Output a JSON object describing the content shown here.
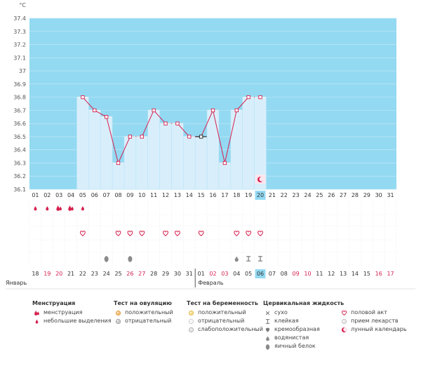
{
  "chart_data": {
    "type": "line",
    "yunit": "°C",
    "ylim": [
      36.1,
      37.4
    ],
    "yticks": [
      "36.1",
      "36.2",
      "36.3",
      "36.4",
      "36.5",
      "36.6",
      "36.7",
      "36.8",
      "36.9",
      "37",
      "37.1",
      "37.2",
      "37.3",
      "37.4"
    ],
    "x": [
      "01",
      "02",
      "03",
      "04",
      "05",
      "06",
      "07",
      "08",
      "09",
      "10",
      "11",
      "12",
      "13",
      "14",
      "15",
      "16",
      "17",
      "18",
      "19",
      "20",
      "21",
      "22",
      "23",
      "24",
      "25",
      "26",
      "27",
      "28",
      "29",
      "30",
      "31"
    ],
    "selected_day": "20",
    "temperatures": [
      null,
      null,
      null,
      null,
      36.8,
      36.7,
      36.65,
      36.3,
      36.5,
      36.5,
      36.7,
      36.6,
      36.6,
      36.5,
      36.5,
      36.7,
      36.3,
      36.7,
      36.8,
      36.8,
      null,
      null,
      null,
      null,
      null,
      null,
      null,
      null,
      null,
      null,
      null
    ],
    "dates": [
      "18",
      "19",
      "20",
      "21",
      "22",
      "23",
      "24",
      "25",
      "26",
      "27",
      "28",
      "29",
      "30",
      "31",
      "01",
      "02",
      "03",
      "04",
      "05",
      "06",
      "07",
      "08",
      "09",
      "10",
      "11",
      "12",
      "13",
      "14",
      "15",
      "16",
      "17"
    ],
    "date_colors": [
      "#333333",
      "#d6204e",
      "#d6204e",
      "#333333",
      "#333333",
      "#333333",
      "#333333",
      "#333333",
      "#d6204e",
      "#d6204e",
      "#333333",
      "#333333",
      "#333333",
      "#333333",
      "#333333",
      "#d6204e",
      "#d6204e",
      "#333333",
      "#333333",
      "#333333",
      "#333333",
      "#333333",
      "#d6204e",
      "#d6204e",
      "#333333",
      "#333333",
      "#333333",
      "#333333",
      "#333333",
      "#d6204e",
      "#d6204e"
    ],
    "month_labels": [
      {
        "label": "Январь",
        "day_index": 0
      },
      {
        "label": "Февраль",
        "day_index": 14
      }
    ],
    "menstruation": [
      "spotting",
      "spotting",
      "menstruation",
      "menstruation",
      "spotting",
      null,
      null,
      null,
      null,
      null,
      null,
      null,
      null,
      null,
      null,
      null,
      null,
      null,
      null,
      null,
      null,
      null,
      null,
      null,
      null,
      null,
      null,
      null,
      null,
      null,
      null
    ],
    "intercourse_days": [
      "05",
      "08",
      "09",
      "10",
      "12",
      "13",
      "15",
      "18",
      "19",
      "20"
    ],
    "cervical_fluid": [
      null,
      null,
      null,
      null,
      null,
      null,
      "egg_white",
      null,
      "egg_white",
      null,
      null,
      null,
      null,
      null,
      null,
      null,
      null,
      "watery",
      "sticky",
      "sticky",
      null,
      null,
      null,
      null,
      null,
      null,
      null,
      null,
      null,
      null,
      null
    ],
    "lunar_marker_day": "20"
  },
  "legend": {
    "groups": [
      {
        "title": "Менструация",
        "items": [
          {
            "icon": "menstruation-drop-icon",
            "label": "менструация"
          },
          {
            "icon": "spotting-drop-icon",
            "label": "небольшие выделения"
          }
        ]
      },
      {
        "title": "Тест на овуляцию",
        "items": [
          {
            "icon": "ovulation-positive-icon",
            "label": "положительный"
          },
          {
            "icon": "ovulation-negative-icon",
            "label": "отрицательный"
          }
        ]
      },
      {
        "title": "Тест на беременность",
        "items": [
          {
            "icon": "pregnancy-positive-icon",
            "label": "положительный"
          },
          {
            "icon": "pregnancy-negative-icon",
            "label": "отрицательный"
          },
          {
            "icon": "pregnancy-weak-icon",
            "label": "слабоположительный"
          }
        ]
      },
      {
        "title": "Цервикальная жидкость",
        "items": [
          {
            "icon": "dry-icon",
            "label": "сухо"
          },
          {
            "icon": "sticky-icon",
            "label": "клейкая"
          },
          {
            "icon": "creamy-icon",
            "label": "кремообразная"
          },
          {
            "icon": "watery-icon",
            "label": "водянистая"
          },
          {
            "icon": "egg-white-icon",
            "label": "яичный белок"
          }
        ]
      },
      {
        "title": "",
        "items": [
          {
            "icon": "heart-icon",
            "label": "половой акт"
          },
          {
            "icon": "pill-icon",
            "label": "прием лекарств"
          },
          {
            "icon": "moon-icon",
            "label": "лунный календарь"
          }
        ]
      }
    ]
  },
  "colors": {
    "sky": "#93d9f2",
    "bar": "#d8effb",
    "bar_stroke": "#9fd3ee",
    "line": "#d6204e",
    "accent": "#d6204e",
    "selected": "#93d9f2"
  }
}
